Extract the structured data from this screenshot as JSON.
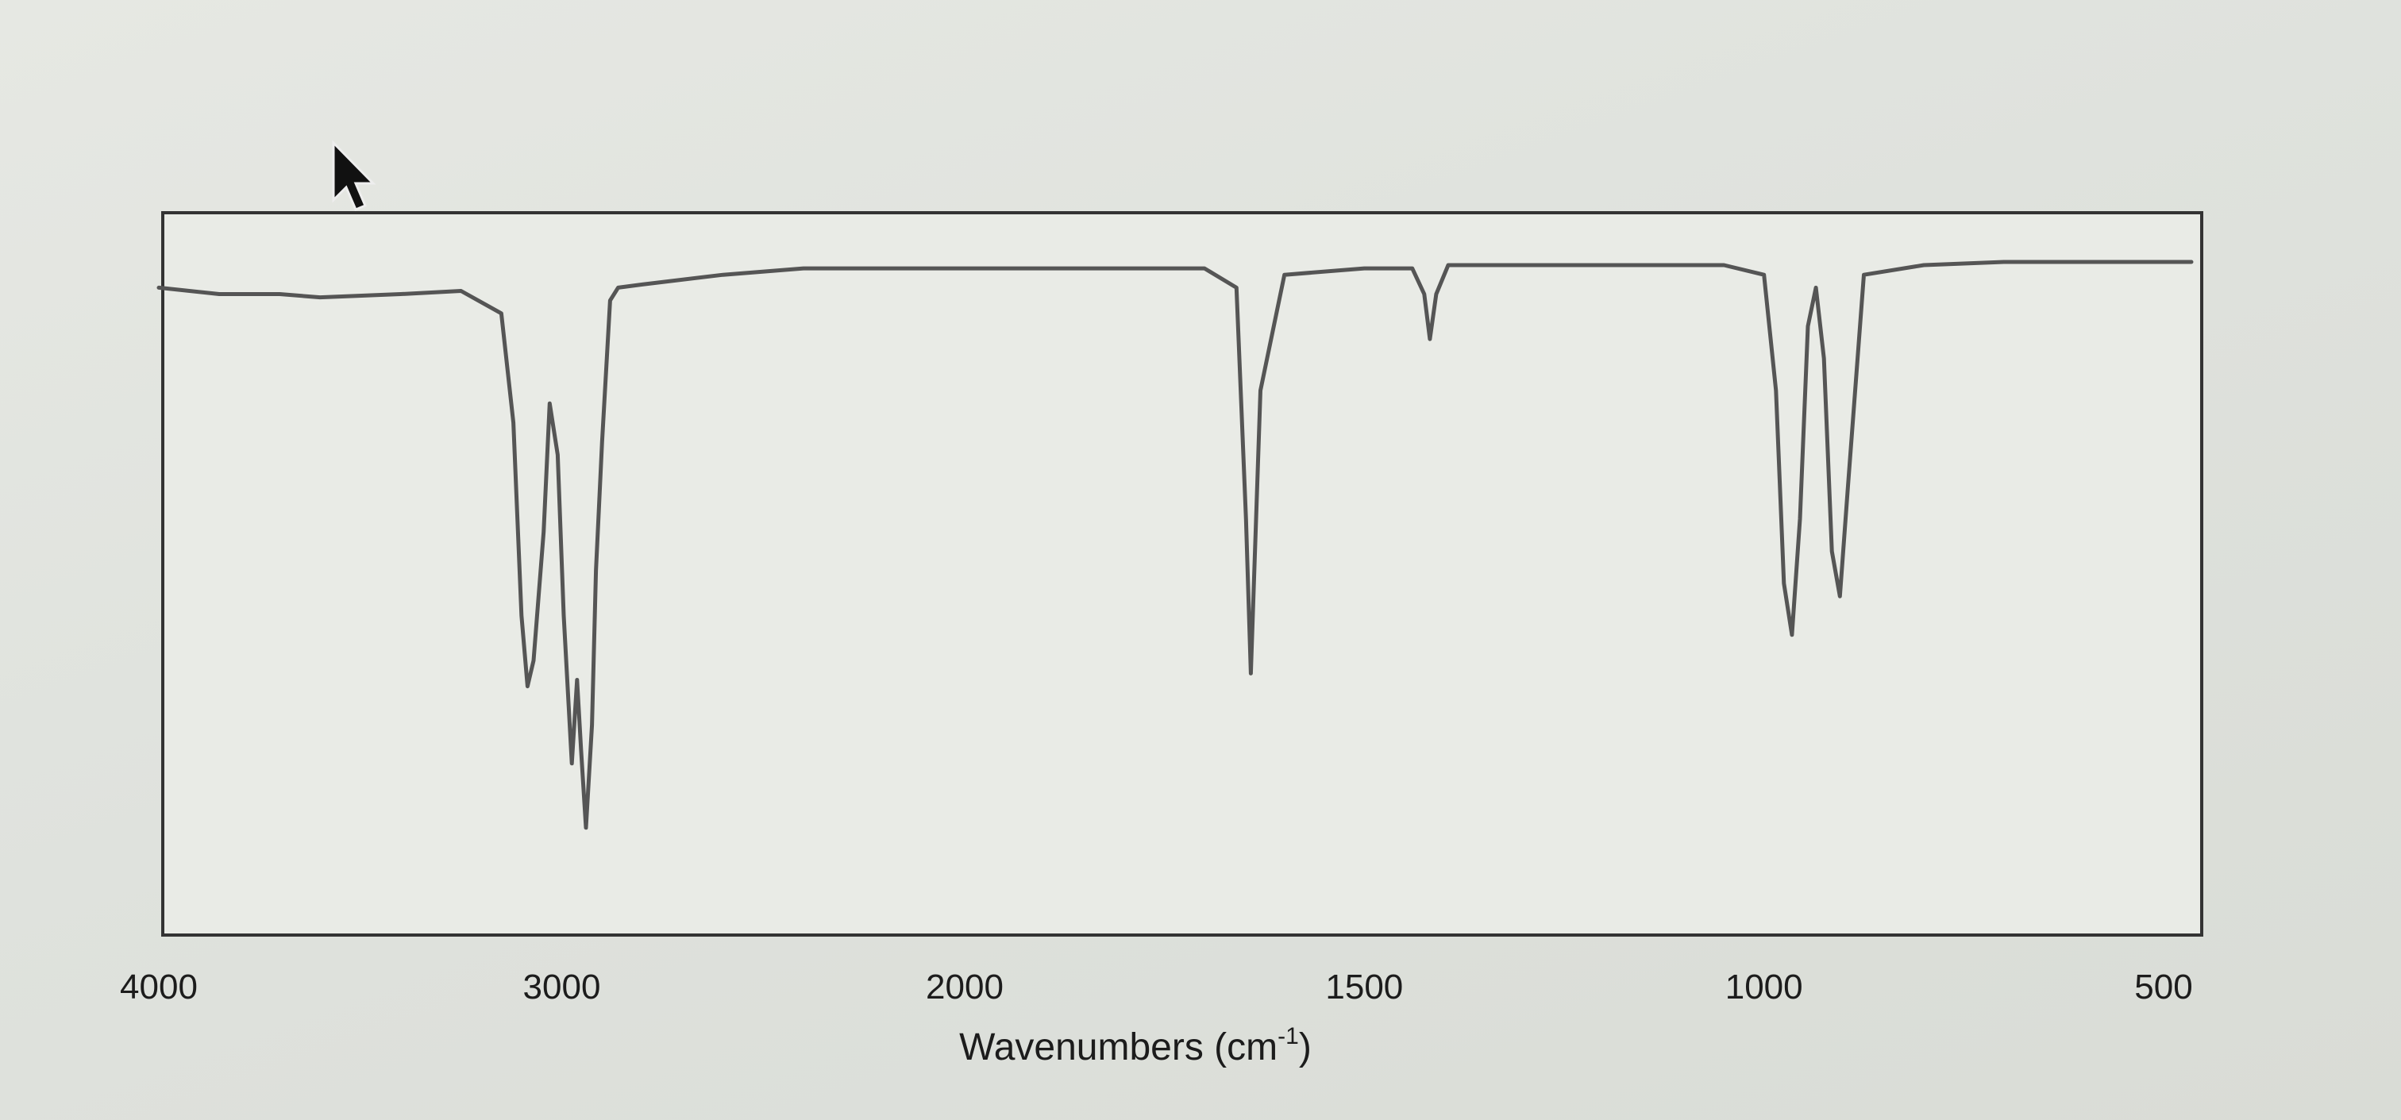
{
  "chart_data": {
    "type": "line",
    "title": "",
    "xlabel": "Wavenumbers (cm",
    "xlabel_superscript": "-1",
    "xlabel_suffix": ")",
    "ylabel": "",
    "x_axis_reversed": true,
    "x_axis_piecewise": "scale changes at 2000 cm-1",
    "x_tick_labels": [
      "4000",
      "3000",
      "2000",
      "1500",
      "1000",
      "500"
    ],
    "x_ticks": [
      4000,
      3000,
      2000,
      1500,
      1000,
      500
    ],
    "xlim": [
      4000,
      450
    ],
    "ylim": [
      0,
      100
    ],
    "grid": false,
    "legend": "none",
    "line_color": "#555555",
    "series": [
      {
        "x": [
          4000,
          3850,
          3700,
          3600,
          3400,
          3250,
          3150,
          3120,
          3100,
          3085,
          3070,
          3045,
          3030,
          3010,
          2995,
          2975,
          2962,
          2952,
          2940,
          2925,
          2915,
          2900,
          2880,
          2860,
          2800,
          2600,
          2400,
          2200,
          2000,
          1850,
          1700,
          1660,
          1648,
          1642,
          1630,
          1600,
          1500,
          1440,
          1425,
          1418,
          1410,
          1395,
          1300,
          1150,
          1050,
          1000,
          985,
          975,
          965,
          955,
          945,
          935,
          925,
          915,
          905,
          895,
          875,
          800,
          700,
          600,
          450
        ],
        "y": [
          96,
          95,
          95,
          94.5,
          95,
          95.5,
          92,
          75,
          45,
          34,
          38,
          58,
          78,
          70,
          45,
          22,
          35,
          24,
          12,
          28,
          52,
          72,
          94,
          96,
          96.5,
          98,
          99,
          99,
          99,
          99,
          99,
          96,
          60,
          36,
          80,
          98,
          99,
          99,
          95,
          88,
          95,
          99.5,
          99.5,
          99.5,
          99.5,
          98,
          80,
          50,
          42,
          60,
          90,
          96,
          85,
          55,
          48,
          65,
          98,
          99.5,
          100,
          100,
          100
        ]
      }
    ]
  }
}
